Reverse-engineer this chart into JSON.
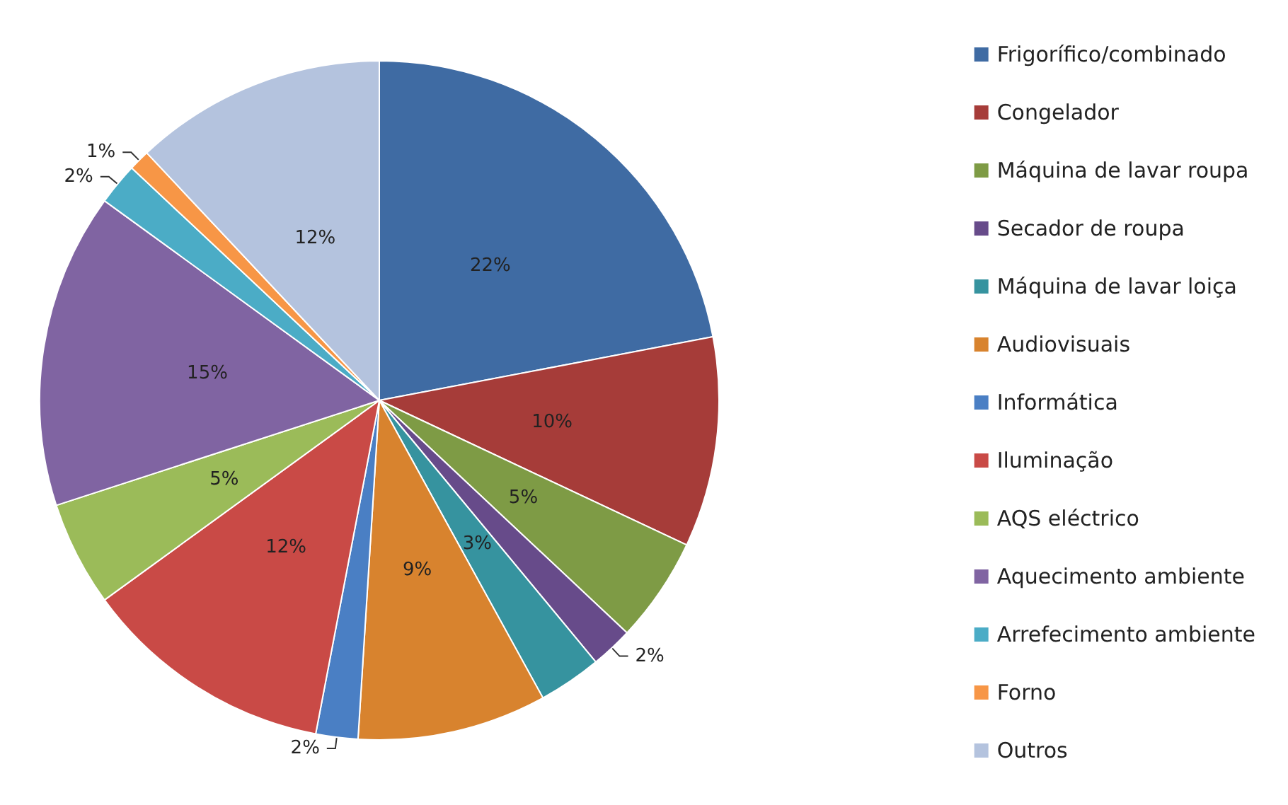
{
  "chart_data": {
    "type": "pie",
    "categories": [
      "Frigorífico/combinado",
      "Congelador",
      "Máquina de lavar roupa",
      "Secador de roupa",
      "Máquina de lavar loiça",
      "Audiovisuais",
      "Informática",
      "Iluminação",
      "AQS eléctrico",
      "Aquecimento ambiente",
      "Arrefecimento ambiente",
      "Forno",
      "Outros"
    ],
    "values": [
      22,
      10,
      5,
      2,
      3,
      9,
      2,
      12,
      5,
      15,
      2,
      1,
      12
    ],
    "value_labels": [
      "22%",
      "10%",
      "5%",
      "2%",
      "3%",
      "9%",
      "2%",
      "12%",
      "5%",
      "15%",
      "2%",
      "1%",
      "12%"
    ],
    "colors": [
      "#3f6ba3",
      "#a63c39",
      "#7e9b45",
      "#674b8a",
      "#36939f",
      "#d8832e",
      "#4a7fc4",
      "#c94a46",
      "#9bbb59",
      "#8064a2",
      "#4bacc6",
      "#f79646",
      "#b4c3de"
    ],
    "legend": "right"
  }
}
